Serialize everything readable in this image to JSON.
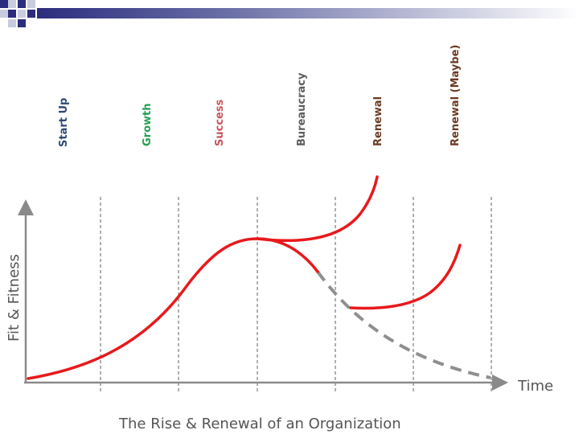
{
  "stages": [
    {
      "label": "Start Up",
      "color": "#2e4a72"
    },
    {
      "label": "Growth",
      "color": "#22a050"
    },
    {
      "label": "Success",
      "color": "#c9535a"
    },
    {
      "label": "Bureaucracy",
      "color": "#5d5d5d"
    },
    {
      "label": "Renewal",
      "color": "#6b3a22"
    },
    {
      "label": "Renewal (Maybe)",
      "color": "#6b3a22"
    }
  ],
  "axes": {
    "y_label": "Fit & Fitness",
    "x_label": "Time"
  },
  "caption": "The Rise & Renewal of an Organization",
  "colors": {
    "curve": "#e8191c",
    "decline": "#8f8f8f",
    "divider": "#7a7a7a",
    "axis": "#8a8a8a",
    "deco_dark": "#2c2c7e",
    "deco_light": "#c9ccdf"
  }
}
